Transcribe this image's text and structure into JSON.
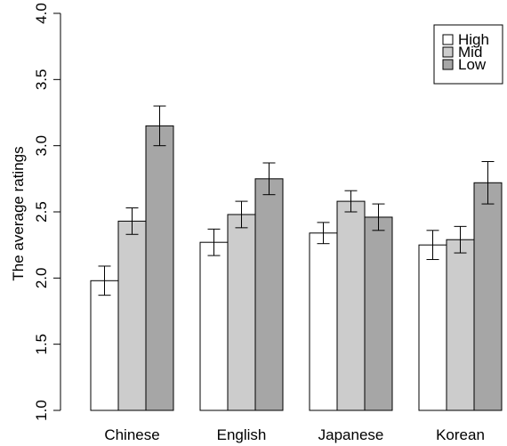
{
  "chart_data": {
    "type": "bar",
    "categories": [
      "Chinese",
      "English",
      "Japanese",
      "Korean"
    ],
    "series": [
      {
        "name": "High",
        "values": [
          1.98,
          2.27,
          2.34,
          2.25
        ],
        "errors": [
          0.11,
          0.1,
          0.08,
          0.11
        ],
        "color": "#ffffff"
      },
      {
        "name": "Mid",
        "values": [
          2.43,
          2.48,
          2.58,
          2.29
        ],
        "errors": [
          0.1,
          0.1,
          0.08,
          0.1
        ],
        "color": "#cccccc"
      },
      {
        "name": "Low",
        "values": [
          3.15,
          2.75,
          2.46,
          2.72
        ],
        "errors": [
          0.15,
          0.12,
          0.1,
          0.16
        ],
        "color": "#a6a6a6"
      }
    ],
    "title": "",
    "xlabel": "",
    "ylabel": "The average ratings",
    "ylim": [
      1.0,
      4.0
    ],
    "yticks": [
      "1.0",
      "1.5",
      "2.0",
      "2.5",
      "3.0",
      "3.5",
      "4.0"
    ],
    "legend_position": "top-right",
    "grid": false
  }
}
